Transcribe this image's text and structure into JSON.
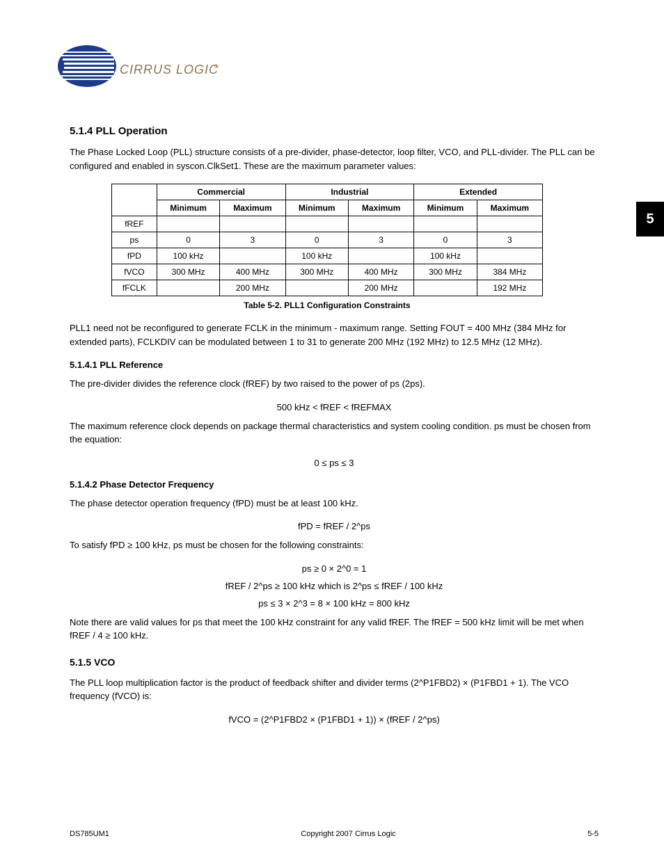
{
  "logo_text": "CIRRUS LOGIC",
  "side_tab": "5",
  "section_5_1_4": {
    "heading": "5.1.4 PLL Operation",
    "paragraph": "The Phase Locked Loop (PLL) structure consists of a pre-divider, phase-detector, loop filter, VCO, and PLL-divider. The PLL can be configured and enabled in syscon.ClkSet1. These are the maximum parameter values:",
    "table": {
      "columns": [
        {
          "label": "",
          "sublabels": []
        },
        {
          "label": "Commercial",
          "sublabels": [
            "Minimum",
            "Maximum"
          ]
        },
        {
          "label": "Industrial",
          "sublabels": [
            "Minimum",
            "Maximum"
          ]
        },
        {
          "label": "Extended",
          "sublabels": [
            "Minimum",
            "Maximum"
          ]
        }
      ],
      "rows": [
        [
          "fREF",
          "",
          "",
          "",
          "",
          "",
          ""
        ],
        [
          "ps",
          "0",
          "3",
          "0",
          "3",
          "0",
          "3"
        ],
        [
          "fPD",
          "100 kHz",
          "",
          "100 kHz",
          "",
          "100 kHz",
          ""
        ],
        [
          "fVCO",
          "300 MHz",
          "400 MHz",
          "300 MHz",
          "400 MHz",
          "300 MHz",
          "384 MHz"
        ],
        [
          "fFCLK",
          "",
          "200 MHz",
          "",
          "200 MHz",
          "",
          "192 MHz"
        ]
      ],
      "caption": "Table 5-2. PLL1 Configuration Constraints"
    },
    "paragraph2": "PLL1 need not be reconfigured to generate FCLK in the minimum - maximum range. Setting FOUT = 400 MHz (384 MHz for extended parts), FCLKDIV can be modulated between 1 to 31 to generate 200 MHz (192 MHz) to 12.5 MHz (12 MHz)."
  },
  "section_5_1_4_1": {
    "heading": "5.1.4.1 PLL Reference",
    "paragraph1": "The pre-divider divides the reference clock (fREF) by two raised to the power of ps (2ps).",
    "eq_ref": "500 kHz < fREF < fREFMAX",
    "paragraph2": "The maximum reference clock depends on package thermal characteristics and system cooling condition. ps must be chosen from the equation:",
    "eq_ps": "0 ≤ ps ≤ 3"
  },
  "section_5_1_4_2": {
    "heading": "5.1.4.2 Phase Detector Frequency",
    "paragraph1": "The phase detector operation frequency (fPD) must be at least 100 kHz.",
    "eq_fpd": "fPD = fREF / 2^ps",
    "paragraph2": "To satisfy fPD ≥ 100 kHz, ps must be chosen for the following constraints:",
    "eq_ps1": "ps ≥ 0 × 2^0 = 1",
    "eq_constraints": "fREF / 2^ps ≥ 100 kHz which is 2^ps ≤ fREF / 100 kHz",
    "eq_ps2": "ps ≤ 3 × 2^3 = 8 × 100 kHz = 800 kHz",
    "note": "Note there are valid values for ps that meet the 100 kHz constraint for any valid fREF. The fREF = 500 kHz limit will be met when fREF / 4 ≥ 100 kHz."
  },
  "section_5_1_5": {
    "heading": "5.1.5 VCO",
    "paragraph": "The PLL loop multiplication factor is the product of feedback shifter and divider terms (2^P1FBD2) × (P1FBD1 + 1). The VCO frequency (fVCO) is:",
    "eq_vco": "fVCO = (2^P1FBD2 × (P1FBD1 + 1)) × (fREF / 2^ps)"
  },
  "footer": {
    "left": "DS785UM1",
    "right": "Copyright 2007 Cirrus Logic",
    "page": "5-5"
  },
  "colors": {
    "text": "#000000",
    "background": "#ffffff",
    "logo_blue": "#1e3a8a",
    "logo_gold": "#8b7355",
    "tab_bg": "#000000",
    "tab_text": "#ffffff"
  }
}
